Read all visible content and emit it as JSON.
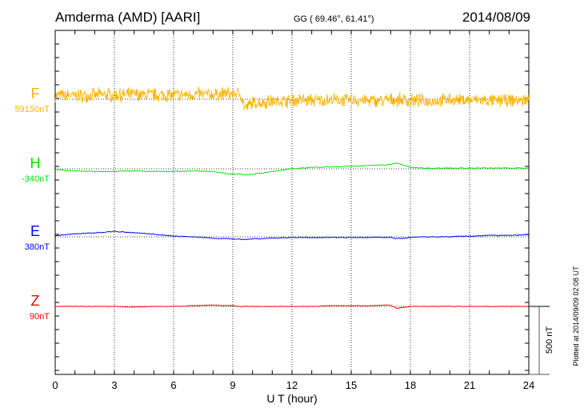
{
  "chart_data": {
    "type": "line",
    "title": "Amderma (AMD)  [AARI]",
    "coords": "GG ( 69.46°,  61.41°)",
    "date": "2014/08/09",
    "xlabel": "U T (hour)",
    "xlim": [
      0,
      24
    ],
    "xticks": [
      "0",
      "3",
      "6",
      "9",
      "12",
      "15",
      "18",
      "21",
      "24"
    ],
    "scale_bar": "500 nT",
    "scale_bar_nT": 500,
    "tick_interval_nT": 100,
    "plotted_note": "Plotted at 2014/09/09 02:08 UT",
    "grid": true,
    "x_hours": [
      0,
      1,
      2,
      3,
      4,
      5,
      6,
      7,
      8,
      9,
      9.4,
      9.6,
      10,
      11,
      12,
      13,
      14,
      15,
      16,
      17,
      17.3,
      18,
      19,
      20,
      21,
      22,
      23,
      24
    ],
    "series": [
      {
        "name": "F",
        "baseline_label": "59150nT",
        "color": "#ffb400",
        "noise_nT": 45,
        "values": [
          30,
          25,
          30,
          30,
          35,
          30,
          30,
          35,
          35,
          40,
          40,
          -65,
          -30,
          -15,
          -10,
          -10,
          -5,
          -10,
          -10,
          -5,
          -5,
          -10,
          -10,
          -5,
          -5,
          -10,
          -10,
          -5
        ]
      },
      {
        "name": "H",
        "baseline_label": "-340nT",
        "color": "#00e000",
        "noise_nT": 3,
        "values": [
          -5,
          -15,
          -20,
          -20,
          -15,
          -20,
          -20,
          -15,
          -20,
          -40,
          -40,
          -45,
          -40,
          -20,
          0,
          10,
          15,
          20,
          25,
          30,
          45,
          10,
          5,
          5,
          5,
          5,
          5,
          5
        ]
      },
      {
        "name": "E",
        "baseline_label": "380nT",
        "color": "#0000ff",
        "noise_nT": 3,
        "values": [
          10,
          20,
          30,
          40,
          30,
          20,
          5,
          0,
          -10,
          -15,
          -20,
          -20,
          -15,
          -10,
          -5,
          -5,
          -5,
          -5,
          -5,
          -5,
          -15,
          -5,
          0,
          0,
          5,
          10,
          10,
          15
        ]
      },
      {
        "name": "Z",
        "baseline_label": "90nT",
        "color": "#ff0000",
        "noise_nT": 2,
        "values": [
          0,
          0,
          0,
          0,
          -5,
          0,
          0,
          5,
          10,
          5,
          0,
          0,
          0,
          0,
          0,
          0,
          5,
          5,
          5,
          10,
          -15,
          0,
          0,
          0,
          0,
          0,
          0,
          0
        ]
      }
    ]
  }
}
